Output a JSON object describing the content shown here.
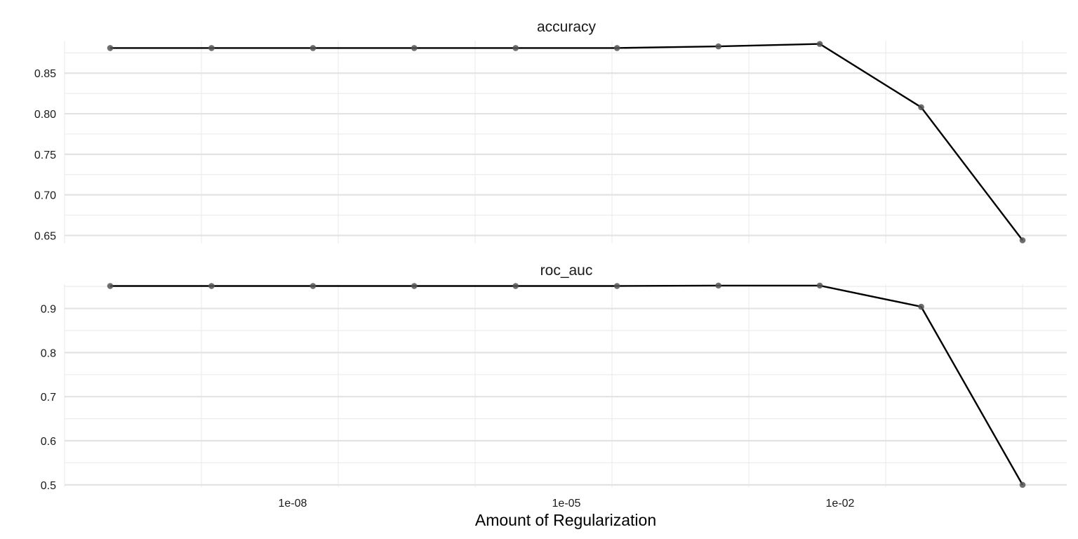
{
  "chart_data": {
    "type": "line",
    "xlabel": "Amount of Regularization",
    "x_scale": "log10",
    "x_ticks": [
      1e-08,
      1e-05,
      0.01
    ],
    "x_tick_labels": [
      "1e-08",
      "1e-05",
      "1e-02"
    ],
    "x": [
      1e-10,
      1.29e-09,
      1.67e-08,
      2.15e-07,
      2.78e-06,
      3.59e-05,
      0.000464,
      0.00599,
      0.0774,
      1.0
    ],
    "line_color": "#000000",
    "point_color": "#555555",
    "grid": true,
    "panels": [
      {
        "title": "accuracy",
        "ylim": [
          0.64,
          0.89
        ],
        "y_ticks": [
          0.65,
          0.7,
          0.75,
          0.8,
          0.85
        ],
        "y_tick_labels": [
          "0.65",
          "0.70",
          "0.75",
          "0.80",
          "0.85"
        ],
        "values": [
          0.881,
          0.881,
          0.881,
          0.881,
          0.881,
          0.881,
          0.883,
          0.886,
          0.808,
          0.644
        ]
      },
      {
        "title": "roc_auc",
        "ylim": [
          0.495,
          0.955
        ],
        "y_ticks": [
          0.5,
          0.6,
          0.7,
          0.8,
          0.9
        ],
        "y_tick_labels": [
          "0.5",
          "0.6",
          "0.7",
          "0.8",
          "0.9"
        ],
        "values": [
          0.951,
          0.951,
          0.951,
          0.951,
          0.951,
          0.951,
          0.952,
          0.952,
          0.904,
          0.5
        ]
      }
    ]
  }
}
